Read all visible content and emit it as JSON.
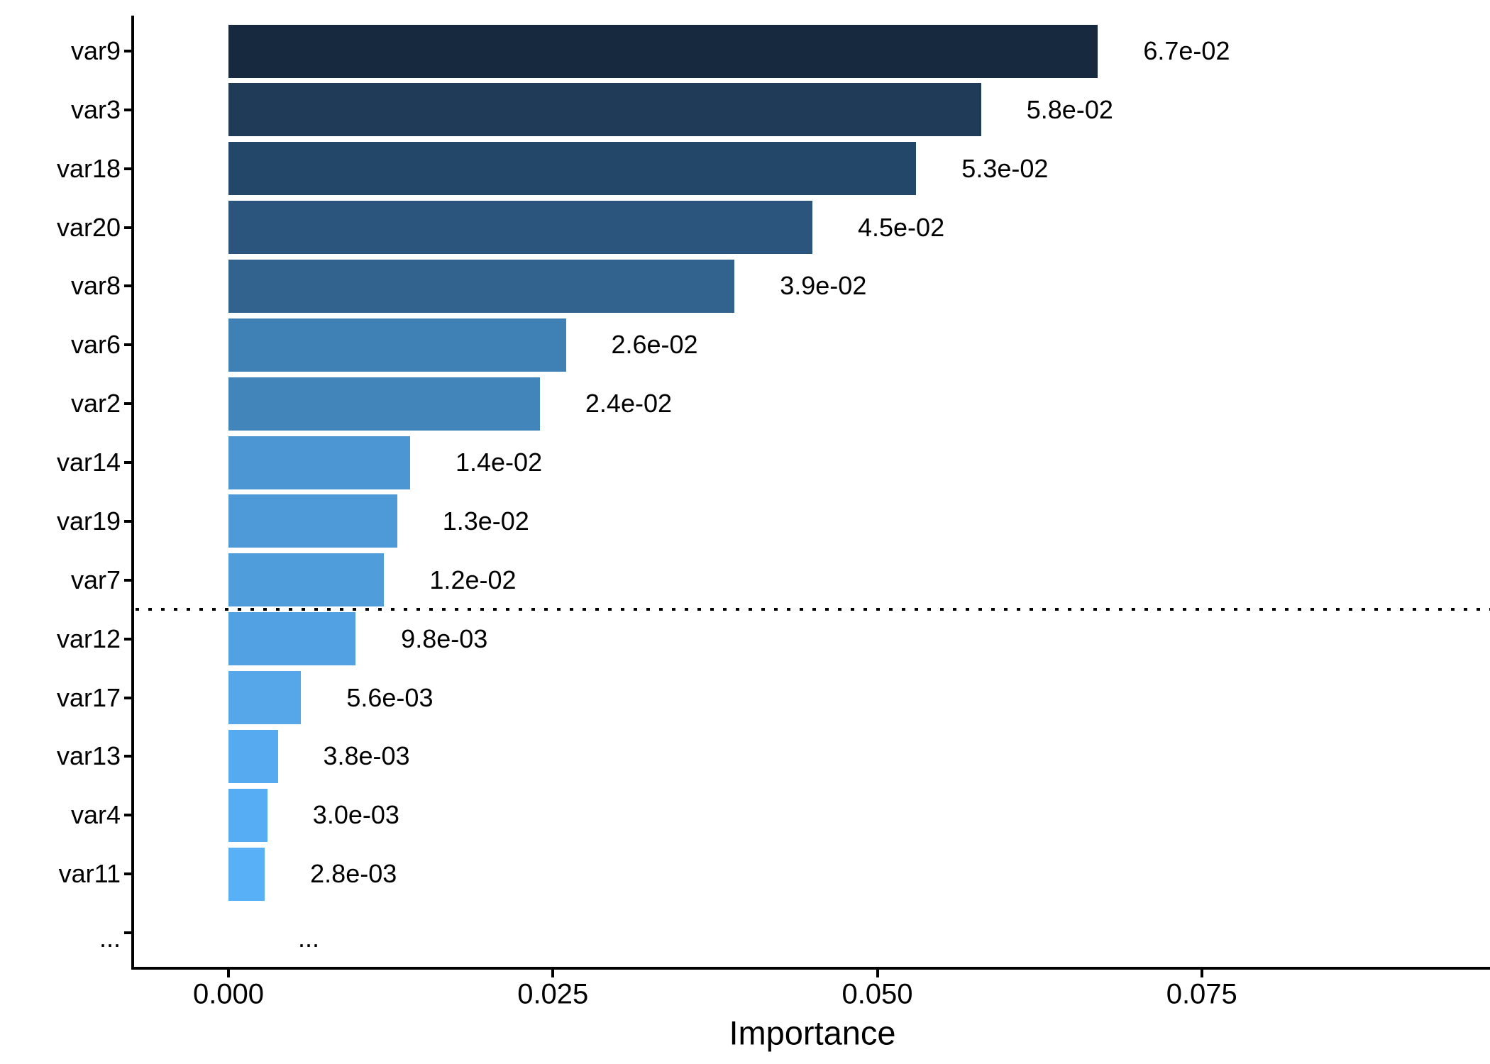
{
  "chart_data": {
    "type": "bar",
    "orientation": "horizontal",
    "title": "",
    "xlabel": "Importance",
    "ylabel": "",
    "categories": [
      "var9",
      "var3",
      "var18",
      "var20",
      "var8",
      "var6",
      "var2",
      "var14",
      "var19",
      "var7",
      "var12",
      "var17",
      "var13",
      "var4",
      "var11",
      "..."
    ],
    "values": [
      0.067,
      0.058,
      0.053,
      0.045,
      0.039,
      0.026,
      0.024,
      0.014,
      0.013,
      0.012,
      0.0098,
      0.0056,
      0.0038,
      0.003,
      0.0028,
      null
    ],
    "value_labels": [
      "6.7e-02",
      "5.8e-02",
      "5.3e-02",
      "4.5e-02",
      "3.9e-02",
      "2.6e-02",
      "2.4e-02",
      "1.4e-02",
      "1.3e-02",
      "1.2e-02",
      "9.8e-03",
      "5.6e-03",
      "3.8e-03",
      "3.0e-03",
      "2.8e-03",
      "..."
    ],
    "bar_colors": [
      "#16293F",
      "#1F3B57",
      "#234768",
      "#2B557C",
      "#32638E",
      "#3F81B5",
      "#4285BA",
      "#4C96D3",
      "#4E99D8",
      "#509DDC",
      "#52A2E3",
      "#55A7EA",
      "#56AAEF",
      "#57ADF3",
      "#58B0F6",
      null
    ],
    "x_ticks": [
      {
        "value": 0.0,
        "label": "0.000"
      },
      {
        "value": 0.025,
        "label": "0.025"
      },
      {
        "value": 0.05,
        "label": "0.050"
      },
      {
        "value": 0.075,
        "label": "0.075"
      }
    ],
    "xlim": [
      0,
      0.0972
    ],
    "grid": false,
    "legend": "none",
    "threshold_line": {
      "between": [
        "var7",
        "var12"
      ],
      "style": "dotted",
      "color": "#000000"
    },
    "axis_color": "#000000",
    "text_color": "#000000",
    "background": "#FFFFFF"
  }
}
